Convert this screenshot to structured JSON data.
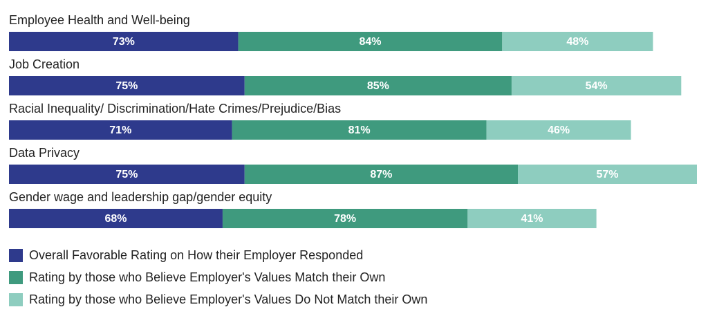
{
  "chart_data": {
    "type": "stacked-bar-horizontal",
    "categories": [
      "Employee Health and Well-being",
      "Job Creation",
      "Racial Inequality/ Discrimination/Hate Crimes/Prejudice/Bias",
      "Data Privacy",
      "Gender wage and leadership gap/gender equity"
    ],
    "series": [
      {
        "name": "Overall Favorable Rating on How their Employer Responded",
        "color": "#2e3a8c",
        "values": [
          73,
          75,
          71,
          75,
          68
        ],
        "value_labels": [
          "73%",
          "75%",
          "71%",
          "75%",
          "68%"
        ]
      },
      {
        "name": "Rating by those who Believe Employer's Values Match their Own",
        "color": "#3f9a7e",
        "values": [
          84,
          85,
          81,
          87,
          78
        ],
        "value_labels": [
          "84%",
          "85%",
          "81%",
          "87%",
          "78%"
        ]
      },
      {
        "name": "Rating by those who Believe Employer's Values Do Not Match their Own",
        "color": "#8ecdbf",
        "values": [
          48,
          54,
          46,
          57,
          41
        ],
        "value_labels": [
          "48%",
          "54%",
          "46%",
          "57%",
          "41%"
        ]
      }
    ],
    "legend": "bottom-left"
  }
}
